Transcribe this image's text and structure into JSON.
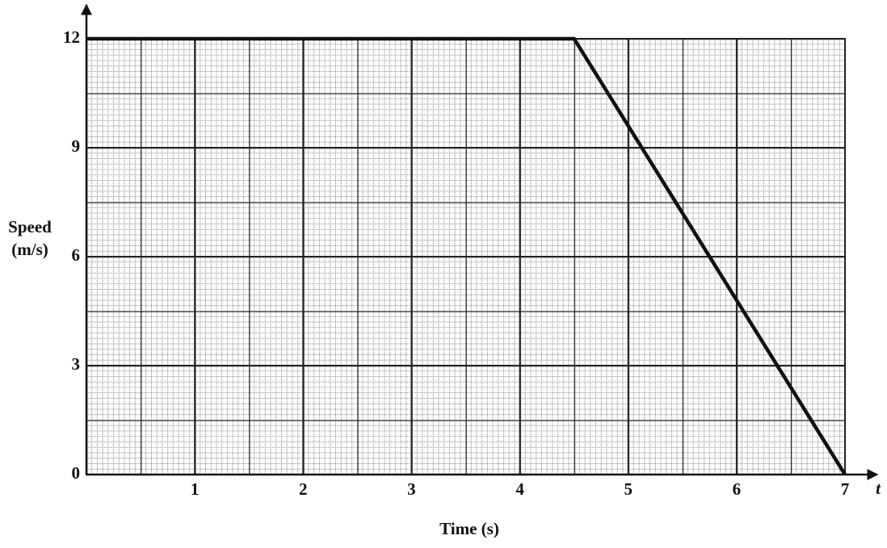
{
  "chart_data": {
    "type": "line",
    "ylabel": [
      "Speed",
      "(m/s)"
    ],
    "xlabel": "Time (s)",
    "x_axis_symbol": "t",
    "x": [
      0,
      4.5,
      7
    ],
    "series": [
      {
        "color": "#111111",
        "values": [
          12,
          12,
          0
        ]
      }
    ],
    "xlim": [
      0,
      7
    ],
    "xticks": [
      1,
      2,
      3,
      4,
      5,
      6,
      7
    ],
    "ylim": [
      0,
      12
    ],
    "yticks": [
      0,
      3,
      6,
      9,
      12
    ],
    "grid": true
  }
}
